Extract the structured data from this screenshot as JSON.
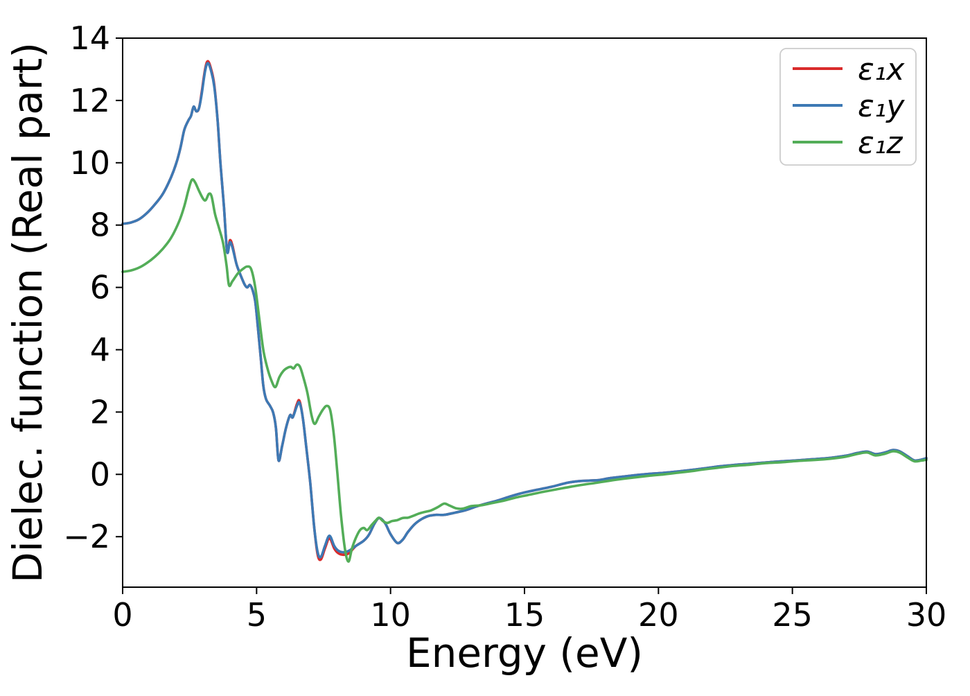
{
  "figure": {
    "background": "#ffffff"
  },
  "chart_data": {
    "type": "line",
    "title": "",
    "xlabel": "Energy (eV)",
    "ylabel": "Dielec. function (Real part)",
    "xlim": [
      0,
      30
    ],
    "ylim": [
      -3.62,
      14
    ],
    "grid": false,
    "xticks": {
      "values": [
        0,
        5,
        10,
        15,
        20,
        25,
        30
      ],
      "labels": [
        "0",
        "5",
        "10",
        "15",
        "20",
        "25",
        "30"
      ]
    },
    "yticks": {
      "values": [
        -2,
        0,
        2,
        4,
        6,
        8,
        10,
        12,
        14
      ],
      "labels": [
        "−2",
        "0",
        "2",
        "4",
        "6",
        "8",
        "10",
        "12",
        "14"
      ]
    },
    "legend": {
      "position": "upper right",
      "entries": [
        {
          "id": "eps1x",
          "label": "ε₁x",
          "color": "#d92b2b"
        },
        {
          "id": "eps1y",
          "label": "ε₁y",
          "color": "#3d79b4"
        },
        {
          "id": "eps1z",
          "label": "ε₁z",
          "color": "#53ad58"
        }
      ]
    },
    "series": [
      {
        "id": "eps1x",
        "name": "ε₁x",
        "color": "#d92b2b",
        "x": [
          0,
          0.3,
          0.6,
          0.9,
          1.2,
          1.5,
          1.8,
          2.0,
          2.15,
          2.3,
          2.45,
          2.55,
          2.65,
          2.75,
          2.85,
          2.95,
          3.08,
          3.18,
          3.3,
          3.42,
          3.55,
          3.65,
          3.78,
          3.9,
          4.0,
          4.1,
          4.25,
          4.4,
          4.55,
          4.65,
          4.75,
          4.85,
          4.95,
          5.05,
          5.15,
          5.25,
          5.35,
          5.5,
          5.62,
          5.72,
          5.82,
          5.95,
          6.1,
          6.25,
          6.35,
          6.5,
          6.6,
          6.72,
          6.85,
          7.0,
          7.15,
          7.28,
          7.4,
          7.55,
          7.72,
          7.9,
          8.05,
          8.25,
          8.45,
          8.7,
          9.0,
          9.2,
          9.4,
          9.58,
          9.8,
          10.0,
          10.25,
          10.45,
          10.65,
          10.9,
          11.15,
          11.4,
          11.7,
          12.0,
          12.4,
          12.8,
          13.2,
          13.6,
          14.0,
          14.5,
          15.0,
          15.5,
          16.0,
          16.6,
          17.0,
          17.4,
          17.8,
          18.2,
          18.7,
          19.2,
          19.7,
          20.2,
          20.7,
          21.2,
          21.7,
          22.2,
          22.8,
          23.4,
          24.0,
          24.6,
          25.2,
          25.8,
          26.4,
          27.0,
          27.45,
          27.8,
          28.1,
          28.45,
          28.75,
          29.0,
          29.3,
          29.55,
          29.8,
          30.0
        ],
        "y": [
          8.04,
          8.08,
          8.18,
          8.38,
          8.66,
          9.0,
          9.52,
          9.98,
          10.45,
          11.05,
          11.35,
          11.5,
          11.8,
          11.65,
          11.75,
          12.26,
          13.01,
          13.26,
          13.01,
          12.51,
          11.3,
          10.0,
          8.6,
          7.15,
          7.51,
          7.34,
          6.75,
          6.4,
          6.1,
          6.0,
          6.08,
          5.92,
          5.55,
          4.7,
          3.8,
          2.85,
          2.42,
          2.2,
          1.98,
          1.5,
          0.45,
          0.9,
          1.5,
          1.9,
          1.83,
          2.24,
          2.36,
          1.85,
          0.9,
          -0.25,
          -1.7,
          -2.58,
          -2.73,
          -2.38,
          -2.05,
          -2.38,
          -2.53,
          -2.58,
          -2.53,
          -2.3,
          -2.13,
          -1.93,
          -1.58,
          -1.4,
          -1.57,
          -1.92,
          -2.2,
          -2.1,
          -1.85,
          -1.6,
          -1.44,
          -1.34,
          -1.3,
          -1.3,
          -1.23,
          -1.15,
          -1.03,
          -0.93,
          -0.84,
          -0.7,
          -0.58,
          -0.49,
          -0.4,
          -0.27,
          -0.22,
          -0.2,
          -0.18,
          -0.12,
          -0.07,
          -0.02,
          0.02,
          0.05,
          0.09,
          0.14,
          0.19,
          0.25,
          0.3,
          0.34,
          0.38,
          0.42,
          0.45,
          0.49,
          0.53,
          0.6,
          0.69,
          0.73,
          0.65,
          0.7,
          0.78,
          0.74,
          0.58,
          0.45,
          0.47,
          0.52
        ]
      },
      {
        "id": "eps1y",
        "name": "ε₁y",
        "color": "#3d79b4",
        "x": [
          0,
          0.3,
          0.6,
          0.9,
          1.2,
          1.5,
          1.8,
          2.0,
          2.15,
          2.3,
          2.45,
          2.55,
          2.65,
          2.75,
          2.85,
          2.95,
          3.08,
          3.18,
          3.3,
          3.42,
          3.55,
          3.65,
          3.78,
          3.9,
          4.0,
          4.1,
          4.25,
          4.4,
          4.55,
          4.65,
          4.75,
          4.85,
          4.95,
          5.05,
          5.15,
          5.25,
          5.35,
          5.5,
          5.62,
          5.72,
          5.82,
          5.95,
          6.1,
          6.25,
          6.35,
          6.5,
          6.6,
          6.72,
          6.85,
          7.0,
          7.15,
          7.28,
          7.4,
          7.55,
          7.72,
          7.9,
          8.05,
          8.25,
          8.45,
          8.7,
          9.0,
          9.2,
          9.4,
          9.58,
          9.8,
          10.0,
          10.25,
          10.45,
          10.65,
          10.9,
          11.15,
          11.4,
          11.7,
          12.0,
          12.4,
          12.8,
          13.2,
          13.6,
          14.0,
          14.5,
          15.0,
          15.5,
          16.0,
          16.6,
          17.0,
          17.4,
          17.8,
          18.2,
          18.7,
          19.2,
          19.7,
          20.2,
          20.7,
          21.2,
          21.7,
          22.2,
          22.8,
          23.4,
          24.0,
          24.6,
          25.2,
          25.8,
          26.4,
          27.0,
          27.45,
          27.8,
          28.1,
          28.45,
          28.75,
          29.0,
          29.3,
          29.55,
          29.8,
          30.0
        ],
        "y": [
          8.04,
          8.08,
          8.18,
          8.38,
          8.66,
          9.0,
          9.52,
          9.98,
          10.45,
          11.05,
          11.35,
          11.5,
          11.8,
          11.65,
          11.75,
          12.2,
          12.95,
          13.2,
          12.95,
          12.45,
          11.3,
          10.0,
          8.6,
          7.15,
          7.45,
          7.28,
          6.75,
          6.4,
          6.1,
          6.0,
          6.08,
          5.92,
          5.55,
          4.7,
          3.8,
          2.85,
          2.42,
          2.2,
          1.98,
          1.5,
          0.45,
          0.9,
          1.5,
          1.9,
          1.83,
          2.18,
          2.3,
          1.85,
          0.9,
          -0.25,
          -1.7,
          -2.5,
          -2.65,
          -2.3,
          -1.97,
          -2.3,
          -2.45,
          -2.5,
          -2.45,
          -2.3,
          -2.13,
          -1.93,
          -1.58,
          -1.4,
          -1.57,
          -1.92,
          -2.2,
          -2.1,
          -1.85,
          -1.6,
          -1.44,
          -1.34,
          -1.3,
          -1.3,
          -1.23,
          -1.15,
          -1.03,
          -0.93,
          -0.84,
          -0.7,
          -0.58,
          -0.49,
          -0.4,
          -0.27,
          -0.22,
          -0.2,
          -0.18,
          -0.12,
          -0.07,
          -0.02,
          0.02,
          0.05,
          0.09,
          0.14,
          0.19,
          0.25,
          0.3,
          0.34,
          0.38,
          0.42,
          0.45,
          0.49,
          0.53,
          0.6,
          0.69,
          0.73,
          0.65,
          0.7,
          0.78,
          0.74,
          0.58,
          0.45,
          0.47,
          0.52
        ]
      },
      {
        "id": "eps1z",
        "name": "ε₁z",
        "color": "#53ad58",
        "x": [
          0,
          0.3,
          0.6,
          0.9,
          1.2,
          1.5,
          1.8,
          2.1,
          2.3,
          2.45,
          2.58,
          2.7,
          2.85,
          3.0,
          3.1,
          3.22,
          3.32,
          3.45,
          3.6,
          3.75,
          3.88,
          3.97,
          4.1,
          4.3,
          4.5,
          4.65,
          4.8,
          4.95,
          5.1,
          5.25,
          5.4,
          5.55,
          5.7,
          5.85,
          6.0,
          6.15,
          6.28,
          6.38,
          6.5,
          6.62,
          6.75,
          6.9,
          7.05,
          7.17,
          7.32,
          7.47,
          7.62,
          7.75,
          7.88,
          8.0,
          8.15,
          8.3,
          8.43,
          8.56,
          8.7,
          8.85,
          9.0,
          9.13,
          9.3,
          9.45,
          9.57,
          9.72,
          9.87,
          10.05,
          10.25,
          10.45,
          10.65,
          10.85,
          11.05,
          11.25,
          11.5,
          11.75,
          12.0,
          12.2,
          12.45,
          12.7,
          13.0,
          13.4,
          13.8,
          14.2,
          14.7,
          15.2,
          15.7,
          16.2,
          16.7,
          17.2,
          17.7,
          18.2,
          18.7,
          19.2,
          19.7,
          20.2,
          20.7,
          21.2,
          21.7,
          22.2,
          22.8,
          23.4,
          24.0,
          24.6,
          25.2,
          25.8,
          26.4,
          27.0,
          27.45,
          27.8,
          28.1,
          28.45,
          28.75,
          29.0,
          29.3,
          29.55,
          29.8,
          30.0
        ],
        "y": [
          6.5,
          6.54,
          6.63,
          6.78,
          6.98,
          7.24,
          7.58,
          8.1,
          8.6,
          9.1,
          9.45,
          9.38,
          9.1,
          8.85,
          8.8,
          9.0,
          8.92,
          8.35,
          7.9,
          7.42,
          6.7,
          6.07,
          6.2,
          6.45,
          6.6,
          6.67,
          6.58,
          6.0,
          5.0,
          4.0,
          3.42,
          3.02,
          2.8,
          3.12,
          3.32,
          3.42,
          3.45,
          3.4,
          3.52,
          3.45,
          3.1,
          2.6,
          1.9,
          1.62,
          1.85,
          2.07,
          2.2,
          2.05,
          1.3,
          0.2,
          -1.3,
          -2.4,
          -2.8,
          -2.38,
          -2.05,
          -1.8,
          -1.72,
          -1.79,
          -1.62,
          -1.48,
          -1.39,
          -1.5,
          -1.56,
          -1.5,
          -1.47,
          -1.4,
          -1.39,
          -1.33,
          -1.26,
          -1.21,
          -1.16,
          -1.06,
          -0.94,
          -1.0,
          -1.09,
          -1.1,
          -1.02,
          -0.99,
          -0.92,
          -0.85,
          -0.74,
          -0.65,
          -0.56,
          -0.48,
          -0.4,
          -0.33,
          -0.27,
          -0.2,
          -0.14,
          -0.09,
          -0.04,
          0.0,
          0.05,
          0.1,
          0.16,
          0.21,
          0.27,
          0.31,
          0.36,
          0.39,
          0.43,
          0.46,
          0.5,
          0.57,
          0.66,
          0.7,
          0.61,
          0.66,
          0.74,
          0.7,
          0.54,
          0.42,
          0.44,
          0.47
        ]
      }
    ]
  }
}
